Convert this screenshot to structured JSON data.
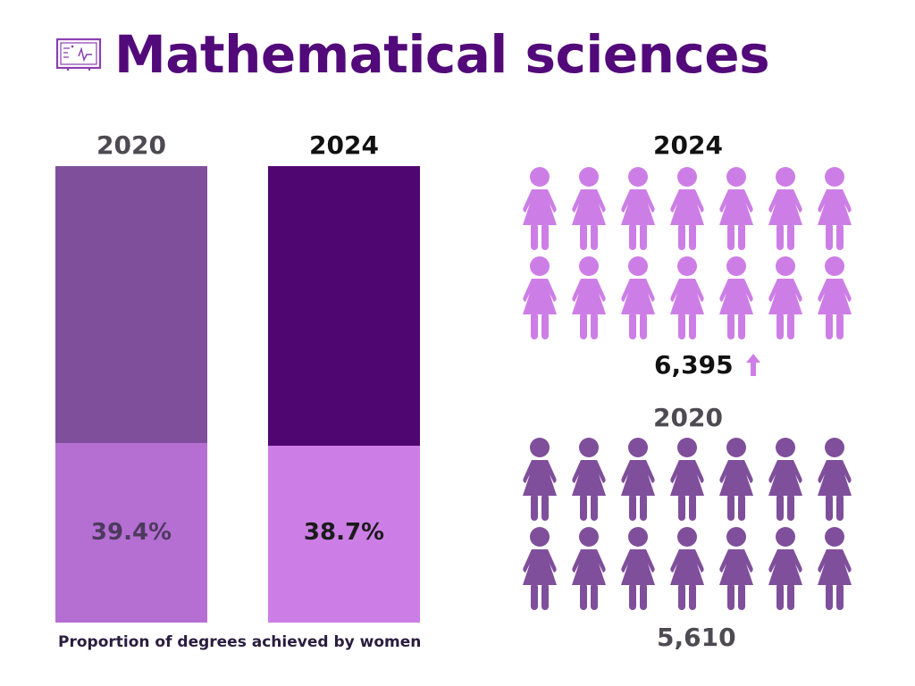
{
  "title": "Mathematical sciences",
  "caption": "Proportion of degrees achieved by women",
  "colors": {
    "title": "#520a7a",
    "bar_2020_rest": "#7f4f9b",
    "bar_2020_women": "#b56fd3",
    "bar_2024_rest": "#500670",
    "bar_2024_women": "#cd7ee6",
    "figure_2024": "#cd7ee6",
    "figure_2020": "#7f4f9b",
    "label_2020": "#4e4a52",
    "label_2024": "#111111"
  },
  "icons": {
    "title": "chalkboard-icon",
    "trend": "arrow-up-icon",
    "person": "woman-figure-icon"
  },
  "chart_data": [
    {
      "type": "bar",
      "categories": [
        "2020",
        "2024"
      ],
      "series": [
        {
          "name": "Women",
          "values": [
            39.4,
            38.7
          ],
          "labels": [
            "39.4%",
            "38.7%"
          ]
        }
      ],
      "ylim": [
        0,
        100
      ]
    },
    {
      "type": "pictograph",
      "groups": [
        {
          "year": "2024",
          "value": 6395,
          "label": "6,395",
          "icons_shown": 14,
          "trend": "up"
        },
        {
          "year": "2020",
          "value": 5610,
          "label": "5,610",
          "icons_shown": 14
        }
      ]
    }
  ]
}
